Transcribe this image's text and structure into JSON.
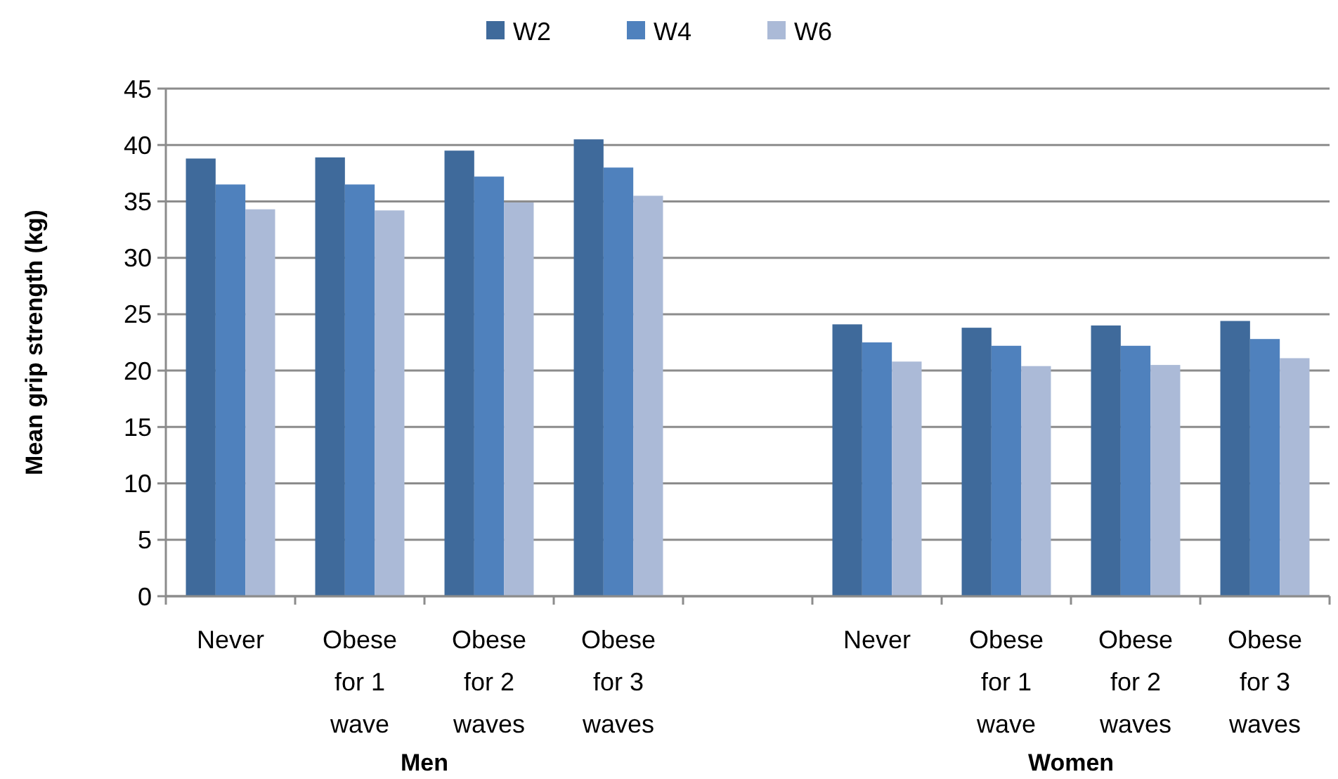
{
  "chart_data": {
    "type": "bar",
    "ylabel": "Mean grip strength (kg)",
    "categories": [
      "Never",
      "Obese for 1 wave",
      "Obese for 2 waves",
      "Obese for 3 waves",
      null,
      "Never",
      "Obese for 1 wave",
      "Obese for 2 waves",
      "Obese for 3 waves"
    ],
    "series": [
      {
        "name": "W2",
        "color": "#3f6a9b",
        "values": [
          38.8,
          38.9,
          39.5,
          40.5,
          null,
          24.1,
          23.8,
          24.0,
          24.4
        ]
      },
      {
        "name": "W4",
        "color": "#4f81bd",
        "values": [
          36.5,
          36.5,
          37.2,
          38.0,
          null,
          22.5,
          22.2,
          22.2,
          22.8
        ]
      },
      {
        "name": "W6",
        "color": "#abbad7",
        "values": [
          34.3,
          34.2,
          34.9,
          35.5,
          null,
          20.8,
          20.4,
          20.5,
          21.1
        ]
      }
    ],
    "ylim": [
      0,
      45
    ],
    "yticks": [
      0,
      5,
      10,
      15,
      20,
      25,
      30,
      35,
      40,
      45
    ],
    "grid": "y",
    "legend": "top",
    "annotations": [
      "Men",
      "Women"
    ]
  }
}
